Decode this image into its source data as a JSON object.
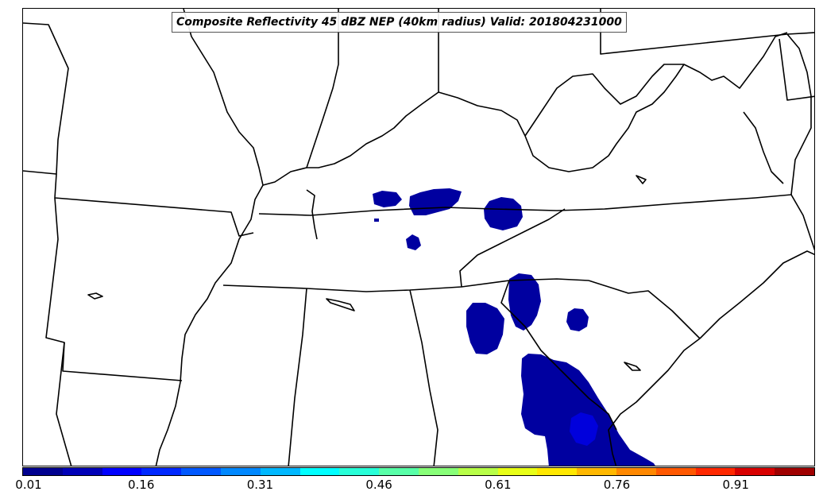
{
  "title": "Composite Reflectivity 45 dBZ NEP (40km radius) Valid: 201804231000",
  "colorbar": {
    "colors": [
      "#00008f",
      "#0000b7",
      "#0000ff",
      "#0028ff",
      "#0058ff",
      "#0088ff",
      "#00b8ff",
      "#00ffff",
      "#28ffd8",
      "#58ffa8",
      "#88ff78",
      "#b8ff48",
      "#e8ff18",
      "#ffe800",
      "#ffb800",
      "#ff8800",
      "#ff5800",
      "#ff2800",
      "#d80000",
      "#a00000"
    ],
    "ticks": [
      "0.01",
      "0.16",
      "0.31",
      "0.46",
      "0.61",
      "0.76",
      "0.91"
    ]
  },
  "probability_colors": {
    "low": "#0000a0",
    "mid_low": "#0000dc"
  },
  "boundary_color": "#000000"
}
